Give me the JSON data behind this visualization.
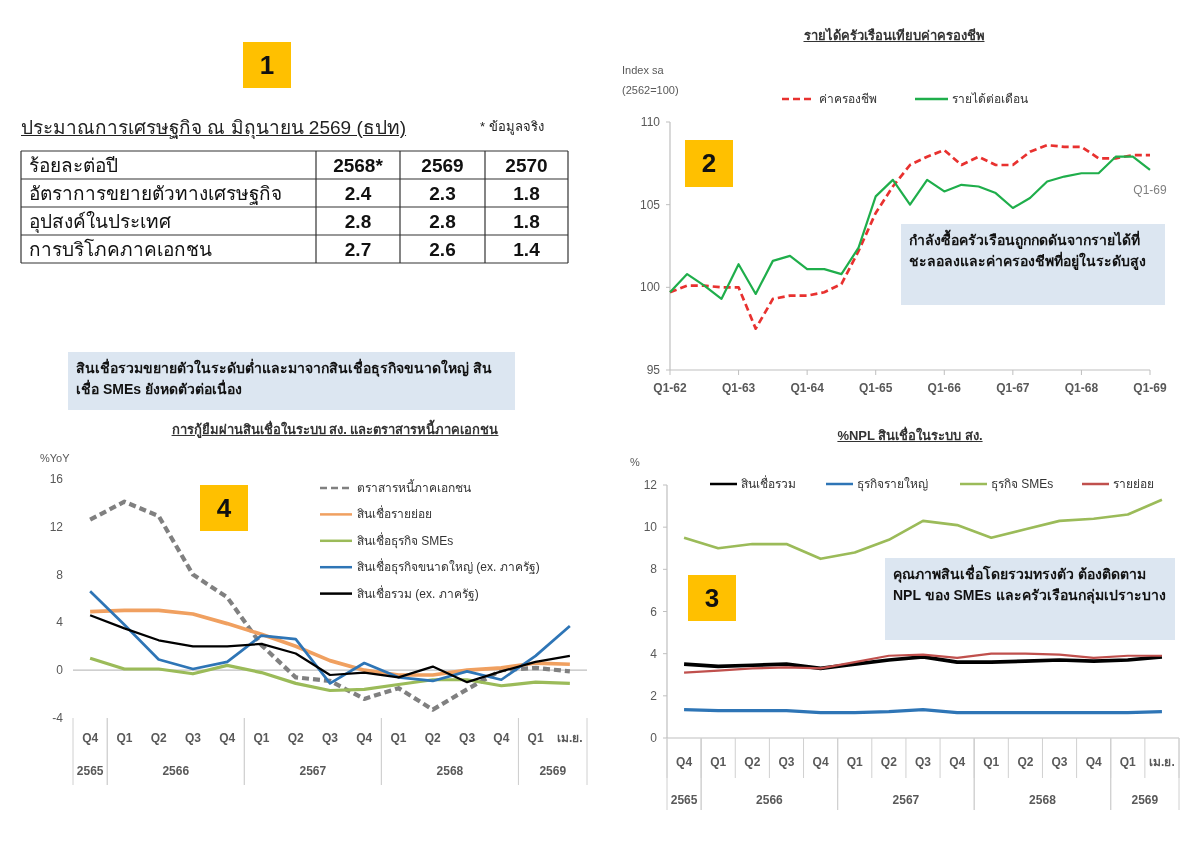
{
  "chart_data": [
    {
      "type": "other",
      "title": "ประมาณการเศรษฐกิจ ณ มิถุนายน 2569 (ธปท)",
      "ylabel": "ร้อยละต่อปี",
      "categories": [
        "2568*",
        "2569",
        "2570"
      ],
      "data_labels": true,
      "series": [
        {
          "name": "อัตราการขยายตัวทางเศรษฐกิจ",
          "values": [
            2.4,
            2.3,
            1.8
          ]
        },
        {
          "name": "อุปสงค์ในประเทศ",
          "values": [
            2.8,
            2.8,
            1.8
          ]
        },
        {
          "name": "การบริโภคภาคเอกชน",
          "values": [
            2.7,
            2.6,
            1.4
          ]
        }
      ],
      "annotations": [
        "1",
        "* ข้อมูลจริง"
      ]
    },
    {
      "type": "line",
      "title": "รายได้ครัวเรือนเทียบค่าครองชีพ",
      "ylabel": "Index sa (2562=100)",
      "legend": "top",
      "categories": [
        "Q1-62",
        null,
        null,
        null,
        "Q1-63",
        null,
        null,
        null,
        "Q1-64",
        null,
        null,
        null,
        "Q1-65",
        null,
        null,
        null,
        "Q1-66",
        null,
        null,
        null,
        "Q1-67",
        null,
        null,
        null,
        "Q1-68",
        null,
        null,
        null,
        "Q1-69"
      ],
      "ylim": [
        95,
        110
      ],
      "yticks": [
        95,
        100,
        105,
        110
      ],
      "series": [
        {
          "name": "ค่าครองชีพ",
          "color": "#e8312f",
          "line_style": "dashed",
          "values": [
            99.7,
            100.1,
            100.1,
            100.0,
            100.0,
            97.5,
            99.3,
            99.5,
            99.5,
            99.7,
            100.2,
            102.2,
            104.5,
            106.1,
            107.4,
            107.9,
            108.3,
            107.4,
            107.9,
            107.4,
            107.4,
            108.2,
            108.6,
            108.5,
            108.5,
            107.8,
            107.8,
            108.0,
            108.0
          ]
        },
        {
          "name": "รายได้ต่อเดือน",
          "color": "#1fae4b",
          "values": [
            99.7,
            100.8,
            100.1,
            99.3,
            101.4,
            99.6,
            101.6,
            101.9,
            101.1,
            101.1,
            100.8,
            102.4,
            105.5,
            106.5,
            105.0,
            106.5,
            105.8,
            106.2,
            106.1,
            105.7,
            104.8,
            105.4,
            106.4,
            106.7,
            106.9,
            106.9,
            107.9,
            107.9,
            107.1
          ]
        }
      ],
      "annotations": [
        "2",
        "กำลังซื้อครัวเรือนถูกกดดันจากรายได้ที่ชะลอลงและค่าครองชีพที่อยู่ในระดับสูง",
        {
          "text": "Q1-69",
          "x": "Q1-69",
          "y": 107.1
        }
      ]
    },
    {
      "type": "line",
      "title": "การกู้ยืมผ่านสินเชื่อในระบบ สง. และตราสารหนี้ภาคเอกชน",
      "ylabel": "%YoY",
      "legend": "top right",
      "categories": [
        "Q4",
        "Q1",
        "Q2",
        "Q3",
        "Q4",
        "Q1",
        "Q2",
        "Q3",
        "Q4",
        "Q1",
        "Q2",
        "Q3",
        "Q4",
        "Q1",
        "เม.ย."
      ],
      "ylim": [
        -4,
        16
      ],
      "yticks": [
        -4,
        0,
        4,
        8,
        12,
        16
      ],
      "series": [
        {
          "name": "ตราสารหนี้ภาคเอกชน",
          "color": "#808080",
          "line_style": "dashed",
          "values": [
            12.6,
            14.1,
            12.9,
            8.0,
            6.1,
            2.1,
            -0.6,
            -0.9,
            -2.4,
            -1.5,
            -3.3,
            -1.6,
            0.0,
            0.2,
            -0.1
          ]
        },
        {
          "name": "สินเชื่อรายย่อย",
          "color": "#f0a060",
          "values": [
            4.9,
            5.0,
            5.0,
            4.7,
            3.9,
            3.0,
            2.0,
            0.8,
            0.0,
            -0.4,
            -0.4,
            0.0,
            0.2,
            0.6,
            0.5
          ]
        },
        {
          "name": "สินเชื่อธุรกิจ SMEs",
          "color": "#9bbb59",
          "values": [
            1.0,
            0.1,
            0.1,
            -0.3,
            0.4,
            -0.2,
            -1.1,
            -1.7,
            -1.6,
            -1.2,
            -0.8,
            -0.8,
            -1.3,
            -1.0,
            -1.1
          ]
        },
        {
          "name": "สินเชื่อธุรกิจขนาดใหญ่ (ex. ภาครัฐ)",
          "color": "#2e75b6",
          "values": [
            6.6,
            3.8,
            0.9,
            0.1,
            0.7,
            2.9,
            2.6,
            -1.1,
            0.6,
            -0.6,
            -0.9,
            -0.1,
            -0.8,
            1.2,
            3.7
          ]
        },
        {
          "name": "สินเชื่อรวม (ex. ภาครัฐ)",
          "color": "#000000",
          "values": [
            4.6,
            3.5,
            2.5,
            2.0,
            2.0,
            2.2,
            1.4,
            -0.4,
            -0.2,
            -0.6,
            0.3,
            -1.0,
            -0.1,
            0.7,
            1.2
          ]
        }
      ],
      "annotations": [
        "4",
        "สินเชื่อรวมขยายตัวในระดับต่ำและมาจากสินเชื่อธุรกิจขนาดใหญ่ สินเชื่อ SMEs ยังหดตัวต่อเนื่อง",
        "2565",
        "2566",
        "2567",
        "2568",
        "2569"
      ]
    },
    {
      "type": "line",
      "title": "%NPL สินเชื่อในระบบ สง.",
      "ylabel": "%",
      "legend": "top",
      "categories": [
        "Q4",
        "Q1",
        "Q2",
        "Q3",
        "Q4",
        "Q1",
        "Q2",
        "Q3",
        "Q4",
        "Q1",
        "Q2",
        "Q3",
        "Q4",
        "Q1",
        "เม.ย."
      ],
      "ylim": [
        0,
        12
      ],
      "yticks": [
        0,
        2,
        4,
        6,
        8,
        10,
        12
      ],
      "series": [
        {
          "name": "สินเชื่อรวม",
          "color": "#000000",
          "values": [
            3.5,
            3.4,
            3.45,
            3.5,
            3.3,
            3.5,
            3.7,
            3.85,
            3.6,
            3.6,
            3.65,
            3.7,
            3.65,
            3.7,
            3.85
          ]
        },
        {
          "name": "ธุรกิจรายใหญ่",
          "color": "#2e75b6",
          "values": [
            1.35,
            1.3,
            1.3,
            1.3,
            1.2,
            1.2,
            1.25,
            1.35,
            1.2,
            1.2,
            1.2,
            1.2,
            1.2,
            1.2,
            1.25
          ]
        },
        {
          "name": "ธุรกิจ SMEs",
          "color": "#9bbb59",
          "values": [
            9.5,
            9.0,
            9.2,
            9.2,
            8.5,
            8.8,
            9.4,
            10.3,
            10.1,
            9.5,
            9.9,
            10.3,
            10.4,
            10.6,
            11.3
          ]
        },
        {
          "name": "รายย่อย",
          "color": "#c0504d",
          "values": [
            3.1,
            3.2,
            3.3,
            3.35,
            3.3,
            3.6,
            3.9,
            3.95,
            3.8,
            4.0,
            4.0,
            3.95,
            3.8,
            3.9,
            3.9
          ]
        }
      ],
      "annotations": [
        "3",
        "คุณภาพสินเชื่อโดยรวมทรงตัว ต้องติดตาม NPL ของ SMEs และครัวเรือนกลุ่มเปราะบาง",
        "2565",
        "2566",
        "2567",
        "2568",
        "2569"
      ]
    }
  ]
}
